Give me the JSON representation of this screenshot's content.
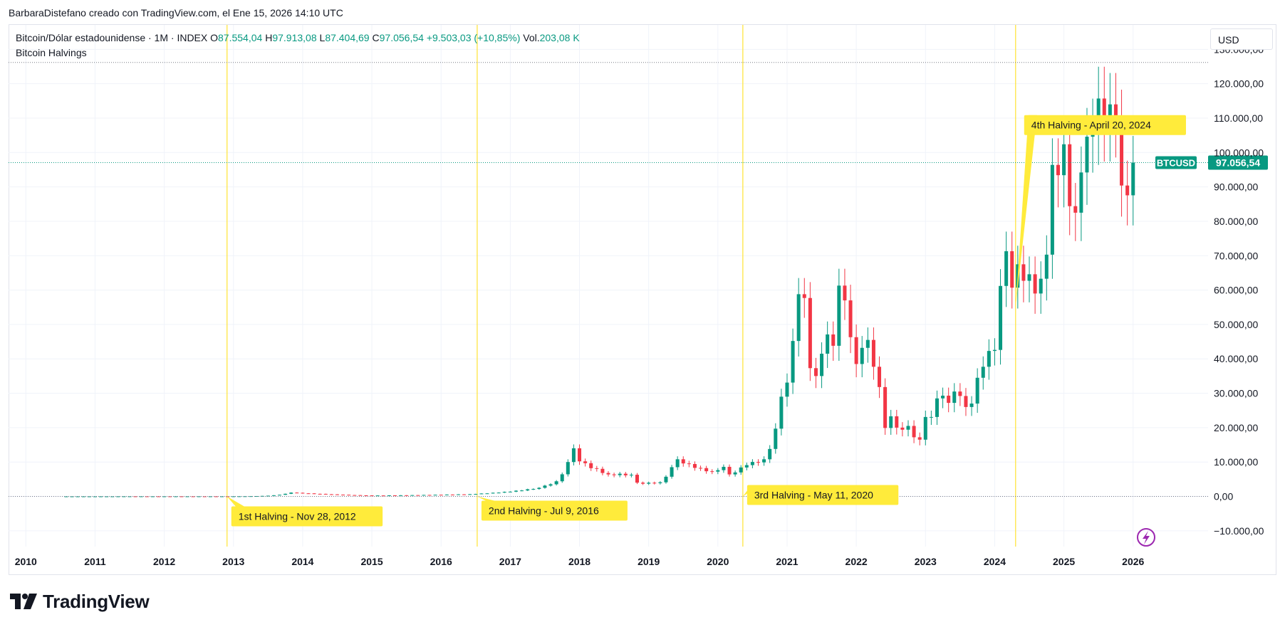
{
  "caption": "BarbaraDistefano creado con TradingView.com, el Ene 15, 2026 14:10 UTC",
  "legend": {
    "symbol": "Bitcoin/Dólar estadounidense · 1M · INDEX",
    "o_label": "O",
    "o_value": "87.554,04",
    "h_label": "H",
    "h_value": "97.913,08",
    "l_label": "L",
    "l_value": "87.404,69",
    "c_label": "C",
    "c_value": "97.056,54",
    "change": "+9.503,03 (+10,85%)",
    "vol_label": "Vol.",
    "vol_value": "203,08 K",
    "indicator": "Bitcoin Halvings"
  },
  "currency": "USD",
  "brand": "TradingView",
  "colors": {
    "up": "#089981",
    "down": "#f23645",
    "halving_line": "#ffe333",
    "halving_label": "#ffeb3b"
  },
  "chart_data": {
    "type": "candlestick",
    "ticker_label": "BTCUSD",
    "last_price_label": "97.056,54",
    "last_price": 97056.54,
    "ylim": [
      -15000,
      134000
    ],
    "y_ticks": [
      -10000,
      0,
      10000,
      20000,
      30000,
      40000,
      50000,
      60000,
      70000,
      80000,
      90000,
      100000,
      110000,
      120000,
      130000
    ],
    "y_tick_labels": [
      "−10.000,00",
      "0,00",
      "10.000,00",
      "20.000,00",
      "30.000,00",
      "40.000,00",
      "50.000,00",
      "60.000,00",
      "70.000,00",
      "80.000,00",
      "90.000,00",
      "100.000,00",
      "110.000,00",
      "120.000,00",
      "130.000,00"
    ],
    "x_tick_labels": [
      "2010",
      "2011",
      "2012",
      "2013",
      "2014",
      "2015",
      "2016",
      "2017",
      "2018",
      "2019",
      "2020",
      "2021",
      "2022",
      "2023",
      "2024",
      "2025",
      "2026"
    ],
    "x_range": [
      "2009-10",
      "2027-02"
    ],
    "ath_high": 126200,
    "halvings": [
      {
        "date": "2012-11-28",
        "label": "1st Halving - Nov 28, 2012"
      },
      {
        "date": "2016-07-09",
        "label": "2nd Halving - Jul 9, 2016"
      },
      {
        "date": "2020-05-11",
        "label": "3rd Halving - May 11, 2020"
      },
      {
        "date": "2024-04-20",
        "label": "4th Halving - April 20, 2024"
      }
    ],
    "anchors": [
      [
        "2010-07",
        0.1
      ],
      [
        "2011-06",
        15
      ],
      [
        "2012-12",
        13
      ],
      [
        "2013-11",
        1100
      ],
      [
        "2014-06",
        600
      ],
      [
        "2015-01",
        250
      ],
      [
        "2016-06",
        650
      ],
      [
        "2017-06",
        2500
      ],
      [
        "2017-09",
        4400
      ],
      [
        "2017-11",
        10000
      ],
      [
        "2017-12",
        14000
      ],
      [
        "2018-01",
        10200
      ],
      [
        "2018-06",
        6400
      ],
      [
        "2018-10",
        6300
      ],
      [
        "2018-11",
        4000
      ],
      [
        "2018-12",
        3700
      ],
      [
        "2019-03",
        4100
      ],
      [
        "2019-05",
        8500
      ],
      [
        "2019-06",
        10800
      ],
      [
        "2019-09",
        8300
      ],
      [
        "2019-12",
        7200
      ],
      [
        "2020-02",
        8600
      ],
      [
        "2020-03",
        6400
      ],
      [
        "2020-06",
        9100
      ],
      [
        "2020-09",
        10800
      ],
      [
        "2020-10",
        13800
      ],
      [
        "2020-11",
        19700
      ],
      [
        "2020-12",
        29000
      ],
      [
        "2021-01",
        33100
      ],
      [
        "2021-02",
        45200
      ],
      [
        "2021-03",
        58800
      ],
      [
        "2021-04",
        57700
      ],
      [
        "2021-05",
        37300
      ],
      [
        "2021-06",
        35000
      ],
      [
        "2021-07",
        41500
      ],
      [
        "2021-08",
        47100
      ],
      [
        "2021-09",
        43800
      ],
      [
        "2021-10",
        61300
      ],
      [
        "2021-11",
        57000
      ],
      [
        "2021-12",
        46300
      ],
      [
        "2022-01",
        38500
      ],
      [
        "2022-02",
        43200
      ],
      [
        "2022-03",
        45500
      ],
      [
        "2022-04",
        37700
      ],
      [
        "2022-05",
        31800
      ],
      [
        "2022-06",
        19900
      ],
      [
        "2022-07",
        23300
      ],
      [
        "2022-08",
        20000
      ],
      [
        "2022-09",
        19400
      ],
      [
        "2022-10",
        20500
      ],
      [
        "2022-11",
        17200
      ],
      [
        "2022-12",
        16500
      ],
      [
        "2023-01",
        23100
      ],
      [
        "2023-02",
        23100
      ],
      [
        "2023-03",
        28500
      ],
      [
        "2023-04",
        29300
      ],
      [
        "2023-05",
        27200
      ],
      [
        "2023-06",
        30500
      ],
      [
        "2023-07",
        29200
      ],
      [
        "2023-08",
        26000
      ],
      [
        "2023-09",
        27000
      ],
      [
        "2023-10",
        34500
      ],
      [
        "2023-11",
        37700
      ],
      [
        "2023-12",
        42300
      ],
      [
        "2024-01",
        42600
      ],
      [
        "2024-02",
        61200
      ],
      [
        "2024-03",
        71300
      ],
      [
        "2024-04",
        60700
      ],
      [
        "2024-05",
        67500
      ],
      [
        "2024-06",
        62700
      ],
      [
        "2024-07",
        64600
      ],
      [
        "2024-08",
        59000
      ],
      [
        "2024-09",
        63300
      ],
      [
        "2024-10",
        70300
      ],
      [
        "2024-11",
        96400
      ],
      [
        "2024-12",
        93400
      ],
      [
        "2025-01",
        102400
      ],
      [
        "2025-02",
        84400
      ],
      [
        "2025-03",
        82500
      ],
      [
        "2025-04",
        94200
      ],
      [
        "2025-05",
        104600
      ],
      [
        "2025-06",
        107100
      ],
      [
        "2025-07",
        115700
      ],
      [
        "2025-08",
        108200
      ],
      [
        "2025-09",
        114000
      ],
      [
        "2025-10",
        109500
      ],
      [
        "2025-11",
        90400
      ],
      [
        "2025-12",
        87554
      ],
      [
        "2026-01",
        97056
      ]
    ]
  }
}
